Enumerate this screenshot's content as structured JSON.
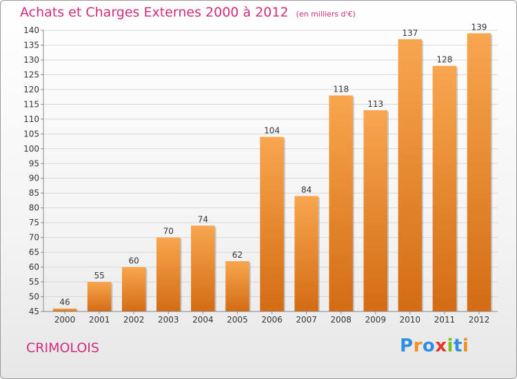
{
  "header": {
    "title": "Achats et Charges Externes 2000 à 2012",
    "subtitle": "(en milliers d'€)"
  },
  "footer": {
    "commune": "CRIMOLOIS",
    "logo_text": "Proxiti"
  },
  "colors": {
    "title": "#d02c7c",
    "bar_top": "#f8a64e",
    "bar_bottom": "#d36c14",
    "logo": [
      "#2f8ee0",
      "#f08f1f",
      "#2f8ee0",
      "#e0382a",
      "#7bbf1e",
      "#2f8ee0",
      "#f08f1f"
    ]
  },
  "chart_data": {
    "type": "bar",
    "categories": [
      "2000",
      "2001",
      "2002",
      "2003",
      "2004",
      "2005",
      "2006",
      "2007",
      "2008",
      "2009",
      "2010",
      "2011",
      "2012"
    ],
    "values": [
      46,
      55,
      60,
      70,
      74,
      62,
      104,
      84,
      118,
      113,
      137,
      128,
      139
    ],
    "data_labels": [
      "46",
      "55",
      "60",
      "70",
      "74",
      "62",
      "104",
      "84",
      "118",
      "113",
      "137",
      "128",
      "139"
    ],
    "ylim": [
      45,
      140
    ],
    "yticks": [
      45,
      50,
      55,
      60,
      65,
      70,
      75,
      80,
      85,
      90,
      95,
      100,
      105,
      110,
      115,
      120,
      125,
      130,
      135,
      140
    ],
    "grid": true,
    "xlabel": "",
    "ylabel": ""
  }
}
